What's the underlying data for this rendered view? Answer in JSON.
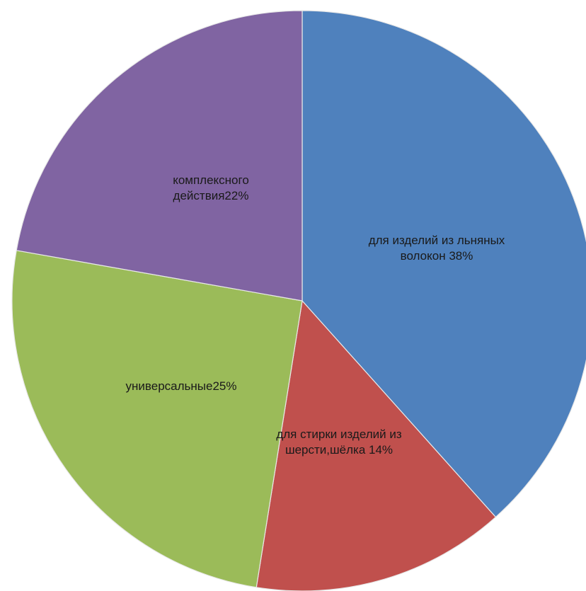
{
  "chart_data": {
    "type": "pie",
    "start_angle_deg": 0,
    "direction": "clockwise",
    "slices": [
      {
        "label_lines": [
          "для изделий из льняных",
          "волокон 38%"
        ],
        "value": 38,
        "color": "#4f81bd"
      },
      {
        "label_lines": [
          "для стирки изделий из",
          "шерсти,шёлка 14%"
        ],
        "value": 14,
        "color": "#c0504d"
      },
      {
        "label_lines": [
          "универсальные25%"
        ],
        "value": 25,
        "color": "#9bbb59"
      },
      {
        "label_lines": [
          "комплексного",
          "действия22%"
        ],
        "value": 22,
        "color": "#8064a2"
      }
    ]
  }
}
